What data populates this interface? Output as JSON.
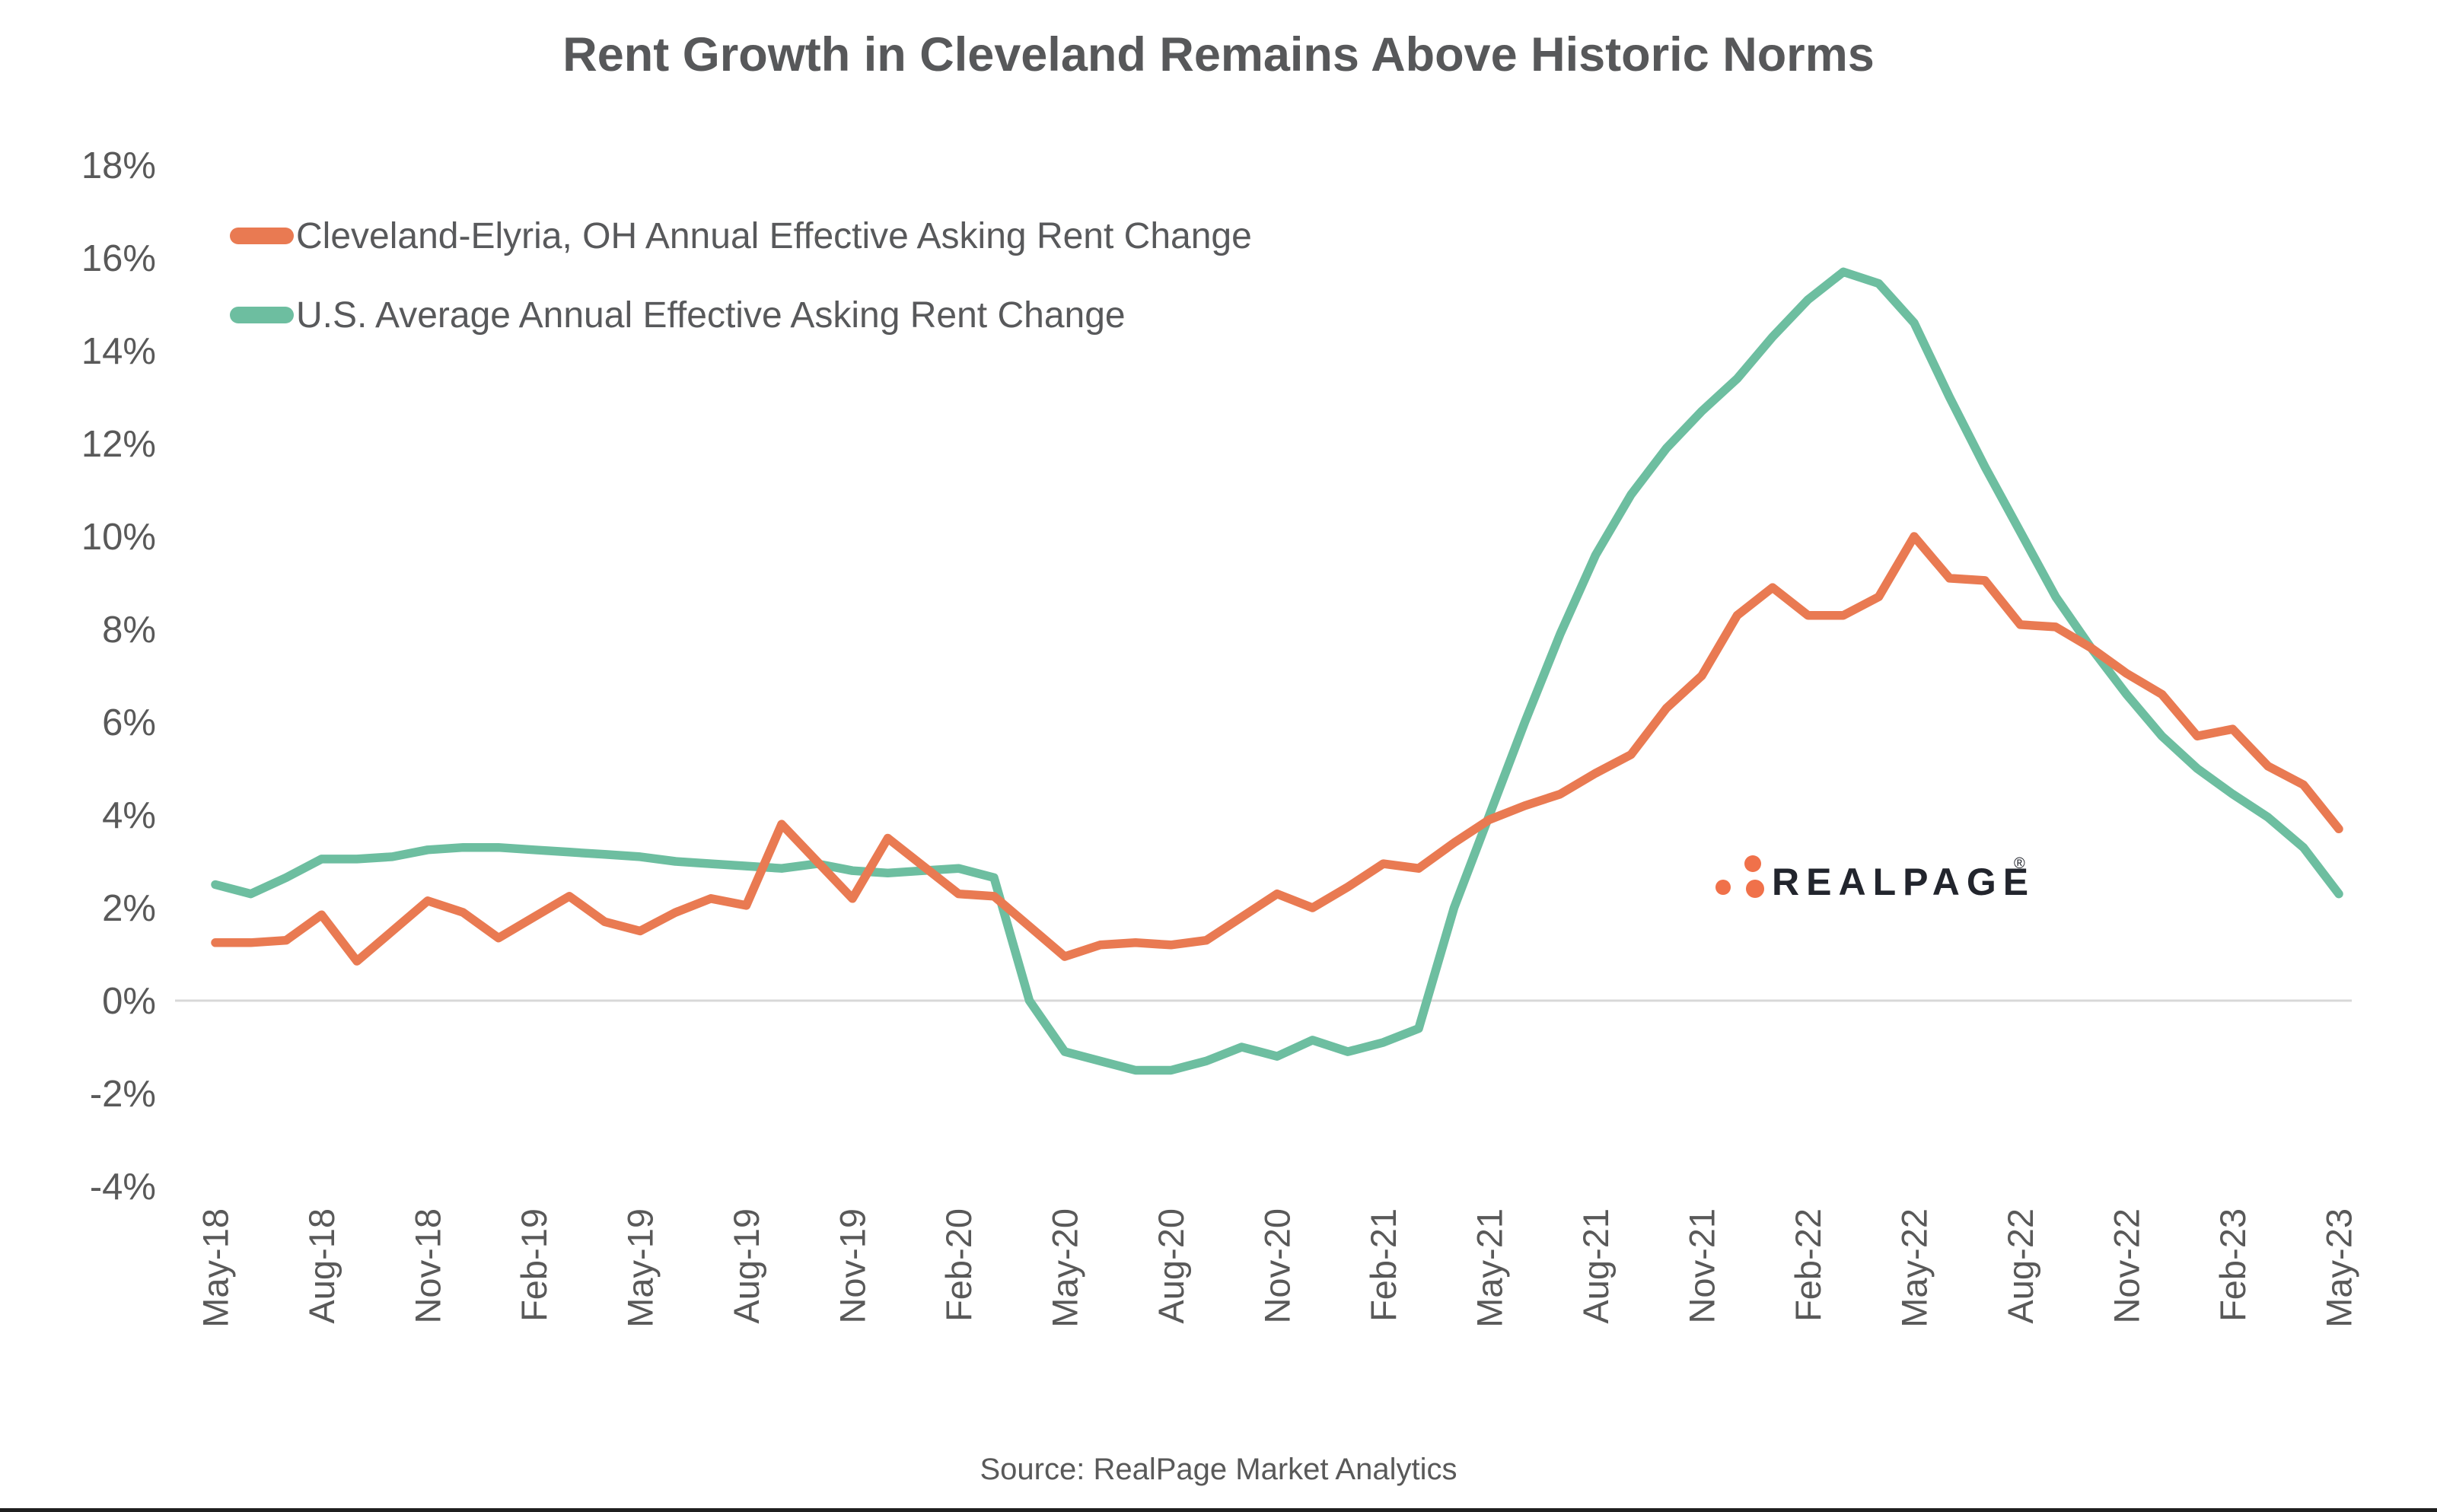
{
  "title": "Rent Growth in Cleveland Remains Above Historic Norms",
  "legend": [
    {
      "label": "Cleveland-Elyria, OH Annual Effective Asking Rent Change",
      "color": "#e97a52"
    },
    {
      "label": "U.S. Average Annual Effective Asking Rent Change",
      "color": "#6dbea0"
    }
  ],
  "source": "Source: RealPage Market Analytics",
  "watermark": {
    "text": "REALPAGE",
    "registered": "®",
    "dot_color": "#f0714a",
    "text_color": "#22252d"
  },
  "chart_data": {
    "type": "line",
    "frequency": "monthly",
    "x_start": "May-18",
    "x_end": "May-23",
    "x_tick_labels": [
      "May-18",
      "Aug-18",
      "Nov-18",
      "Feb-19",
      "May-19",
      "Aug-19",
      "Nov-19",
      "Feb-20",
      "May-20",
      "Aug-20",
      "Nov-20",
      "Feb-21",
      "May-21",
      "Aug-21",
      "Nov-21",
      "Feb-22",
      "May-22",
      "Aug-22",
      "Nov-22",
      "Feb-23",
      "May-23"
    ],
    "y_tick_labels": [
      "18%",
      "16%",
      "14%",
      "12%",
      "10%",
      "8%",
      "6%",
      "4%",
      "2%",
      "0%",
      "-2%",
      "-4%"
    ],
    "ylim": [
      -4,
      18
    ],
    "y_step": 2,
    "grid": "zero-line-only",
    "gridline_color": "#d8d8d8",
    "legend_position": "top-left-inside",
    "series": [
      {
        "name": "U.S. Average Annual Effective Asking Rent Change",
        "color": "#6dbea0",
        "values": [
          2.5,
          2.3,
          2.65,
          3.05,
          3.05,
          3.1,
          3.25,
          3.3,
          3.3,
          3.25,
          3.2,
          3.15,
          3.1,
          3.0,
          2.95,
          2.9,
          2.85,
          2.95,
          2.8,
          2.75,
          2.8,
          2.85,
          2.65,
          0.0,
          -1.1,
          -1.3,
          -1.5,
          -1.5,
          -1.3,
          -1.0,
          -1.2,
          -0.85,
          -1.1,
          -0.9,
          -0.6,
          2.0,
          4.0,
          6.0,
          7.9,
          9.6,
          10.9,
          11.9,
          12.7,
          13.4,
          14.3,
          15.1,
          15.7,
          15.45,
          14.6,
          13.0,
          11.5,
          10.1,
          8.7,
          7.6,
          6.6,
          5.7,
          5.0,
          4.45,
          3.95,
          3.3,
          2.3
        ]
      },
      {
        "name": "Cleveland-Elyria, OH Annual Effective Asking Rent Change",
        "color": "#e97a52",
        "values": [
          1.25,
          1.25,
          1.3,
          1.85,
          0.85,
          1.5,
          2.15,
          1.9,
          1.35,
          1.8,
          2.25,
          1.7,
          1.5,
          1.9,
          2.2,
          2.05,
          3.8,
          3.0,
          2.2,
          3.5,
          2.9,
          2.3,
          2.25,
          1.6,
          0.95,
          1.2,
          1.25,
          1.2,
          1.3,
          1.8,
          2.3,
          2.0,
          2.45,
          2.95,
          2.85,
          3.4,
          3.9,
          4.2,
          4.45,
          4.9,
          5.3,
          6.3,
          7.0,
          8.3,
          8.9,
          8.3,
          8.3,
          8.7,
          10.0,
          9.1,
          9.05,
          8.1,
          8.05,
          7.6,
          7.05,
          6.6,
          5.7,
          5.85,
          5.05,
          4.65,
          3.7
        ]
      }
    ]
  }
}
